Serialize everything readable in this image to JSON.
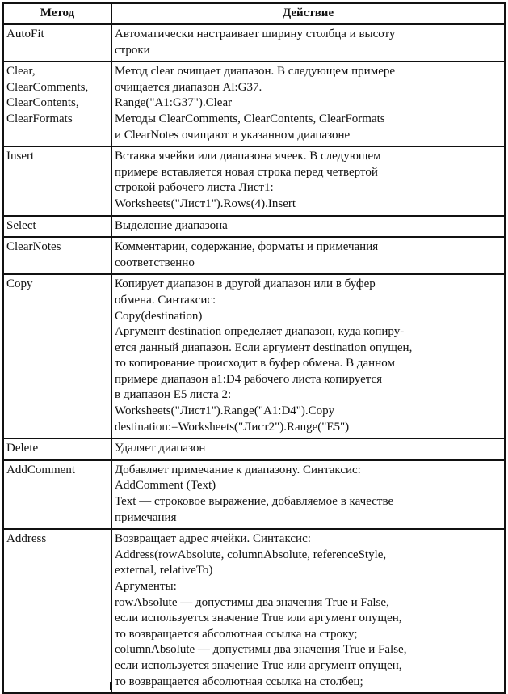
{
  "header": {
    "method": "Метод",
    "action": "Действие"
  },
  "rows": [
    {
      "method": [
        "AutoFit"
      ],
      "action": [
        "Автоматически настраивает ширину столбца и высоту",
        "строки"
      ]
    },
    {
      "method": [
        "Clear,",
        "ClearComments,",
        "ClearContents,",
        "ClearFormats"
      ],
      "action": [
        "Метод clear очищает диапазон. В следующем примере",
        "очищается диапазон Al:G37.",
        "Range(\"A1:G37\").Clear",
        "Методы ClearComments, ClearContents, ClearFormats",
        "и ClearNotes очищают в указанном диапазоне"
      ]
    },
    {
      "method": [
        "Insert"
      ],
      "action": [
        "Вставка ячейки или диапазона ячеек. В следующем",
        "примере вставляется новая строка перед четвертой",
        "строкой рабочего листа Лист1:",
        "Worksheets(\"Лист1\").Rows(4).Insert"
      ]
    },
    {
      "method": [
        "Select"
      ],
      "action": [
        "Выделение диапазона"
      ]
    },
    {
      "method": [
        "ClearNotes"
      ],
      "action": [
        "Комментарии, содержание, форматы и примечания",
        "соответственно"
      ]
    },
    {
      "method": [
        "Copy"
      ],
      "action": [
        "Копирует диапазон в другой диапазон или в буфер",
        "обмена. Синтаксис:",
        "Copy(destination)",
        "Аргумент destination определяет диапазон, куда копиру-",
        "ется данный диапазон. Если аргумент destination опущен,",
        "то копирование происходит в буфер обмена. В данном",
        "примере диапазон a1:D4 рабочего листа копируется",
        "в диапазон E5 листа 2:",
        "Worksheets(\"Лист1\").Range(\"A1:D4\").Copy",
        "destination:=Worksheets(\"Лист2\").Range(\"E5\")"
      ]
    },
    {
      "method": [
        "Delete"
      ],
      "action": [
        "Удаляет диапазон"
      ]
    },
    {
      "method": [
        "AddComment"
      ],
      "action": [
        "Добавляет примечание к диапазону. Синтаксис:",
        "AddComment (Text)",
        "Text — строковое выражение, добавляемое в качестве",
        "примечания"
      ]
    },
    {
      "method": [
        "Address"
      ],
      "action": [
        "Возвращает адрес ячейки. Синтаксис:",
        "Address(rowAbsolute, columnAbsolute, referenceStyle,",
        "external, relativeTo)",
        "Аргументы:",
        "rowAbsolute — допустимы два значения True и False,",
        "если используется значение True или аргумент опущен,",
        "то возвращается абсолютная ссылка на строку;",
        "columnAbsolute — допустимы два значения True и False,",
        "если используется значение True или аргумент опущен,",
        "то возвращается абсолютная ссылка на столбец;"
      ]
    }
  ]
}
